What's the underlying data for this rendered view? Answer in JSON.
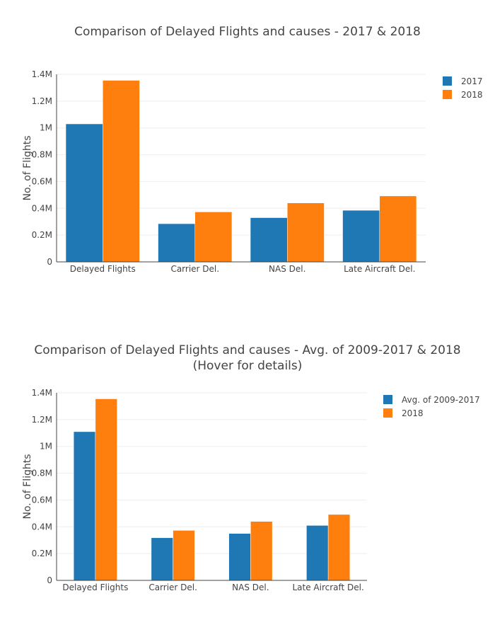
{
  "chart_data": [
    {
      "type": "bar",
      "title": "Comparison of Delayed Flights and causes - 2017 & 2018",
      "ylabel": "No. of Flights",
      "ylim": [
        0,
        1400000
      ],
      "yticks": [
        0,
        200000,
        400000,
        600000,
        800000,
        1000000,
        1200000,
        1400000
      ],
      "ytick_labels": [
        "0",
        "0.2M",
        "0.4M",
        "0.6M",
        "0.8M",
        "1M",
        "1.2M",
        "1.4M"
      ],
      "categories": [
        "Delayed Flights",
        "Carrier Del.",
        "NAS Del.",
        "Late Aircraft Del."
      ],
      "series": [
        {
          "name": "2017",
          "color": "#1f77b4",
          "values": [
            1030000,
            285000,
            330000,
            385000
          ]
        },
        {
          "name": "2018",
          "color": "#ff7f0e",
          "values": [
            1355000,
            373000,
            440000,
            492000
          ]
        }
      ],
      "grid": true,
      "legend": "top-right"
    },
    {
      "type": "bar",
      "title": "Comparison of Delayed Flights and causes - Avg. of 2009-2017 & 2018",
      "subtitle": "(Hover for details)",
      "ylabel": "No. of Flights",
      "ylim": [
        0,
        1400000
      ],
      "yticks": [
        0,
        200000,
        400000,
        600000,
        800000,
        1000000,
        1200000,
        1400000
      ],
      "ytick_labels": [
        "0",
        "0.2M",
        "0.4M",
        "0.6M",
        "0.8M",
        "1M",
        "1.2M",
        "1.4M"
      ],
      "categories": [
        "Delayed Flights",
        "Carrier Del.",
        "NAS Del.",
        "Late Aircraft Del."
      ],
      "series": [
        {
          "name": "Avg. of 2009-2017",
          "color": "#1f77b4",
          "values": [
            1110000,
            318000,
            350000,
            410000
          ]
        },
        {
          "name": "2018",
          "color": "#ff7f0e",
          "values": [
            1355000,
            373000,
            440000,
            492000
          ]
        }
      ],
      "grid": true,
      "legend": "top-right"
    }
  ]
}
